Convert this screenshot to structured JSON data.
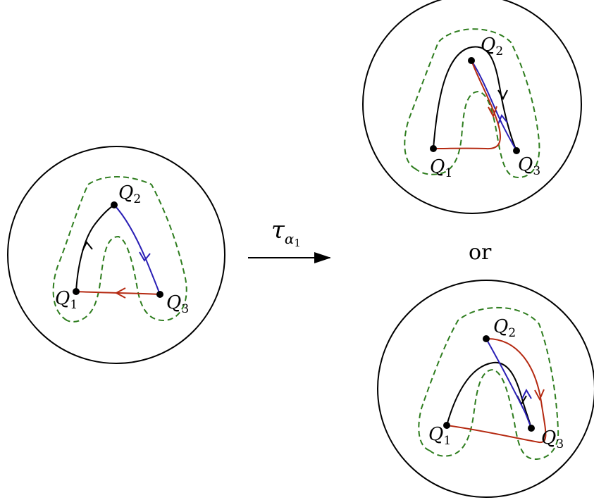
{
  "labels": {
    "q1": "Q",
    "q1_sub": "1",
    "q2": "Q",
    "q2_sub": "2",
    "q3": "Q",
    "q3_sub": "3"
  },
  "transform": {
    "symbol": "τ",
    "sub": "α",
    "sub_index": "1"
  },
  "separator": "or",
  "colors": {
    "circle": "#000000",
    "dashed_loop": "#2e7d1e",
    "black_arc": "#000000",
    "blue_arc": "#2a1fb5",
    "red_arc": "#b52a12"
  }
}
